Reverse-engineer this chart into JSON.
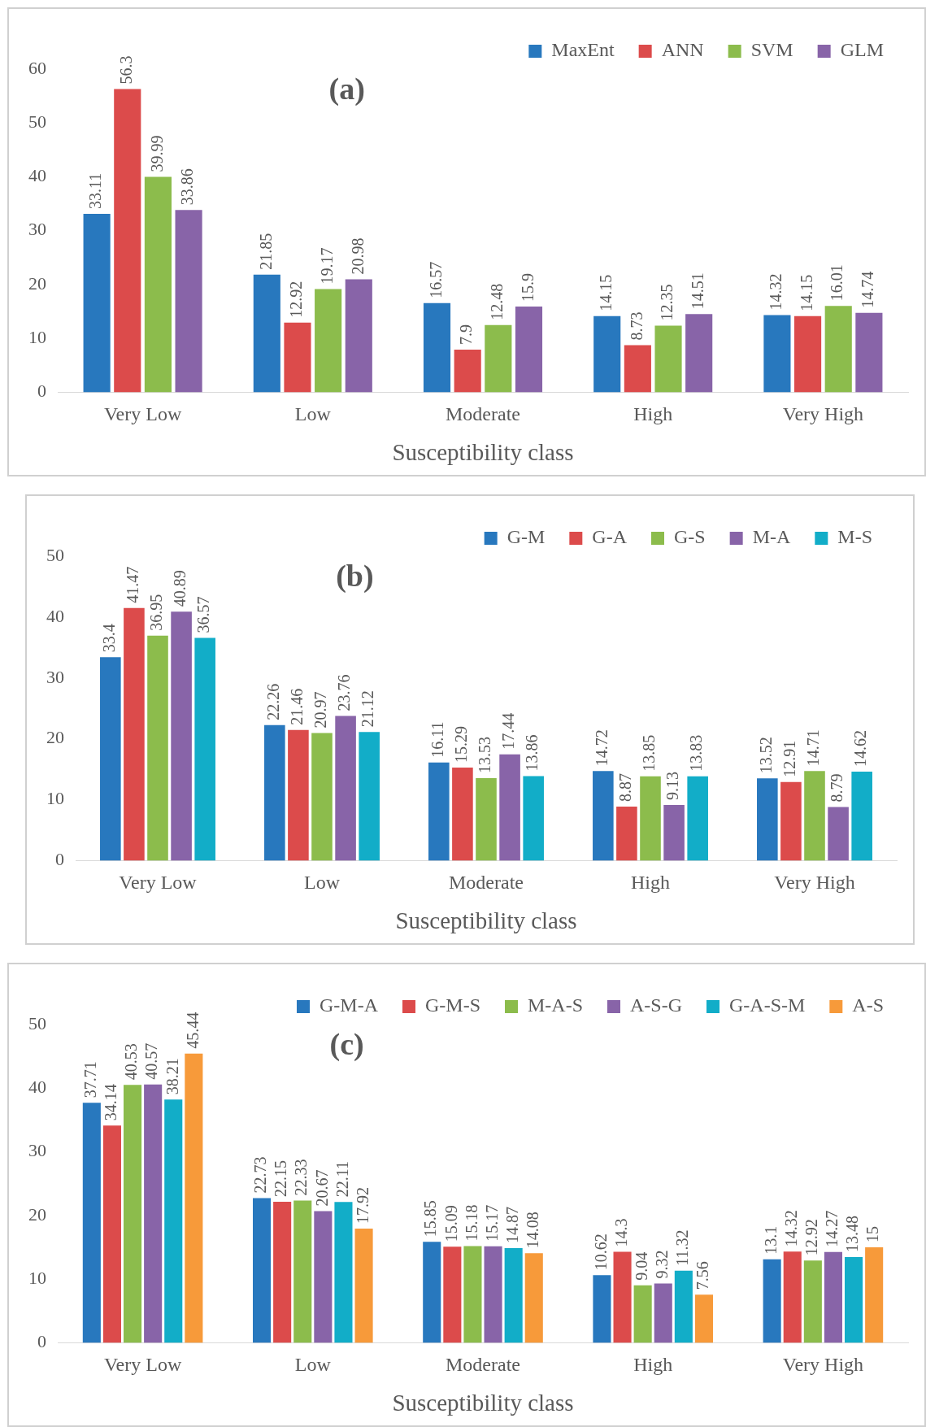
{
  "chart_data": [
    {
      "type": "bar",
      "title": "(a)",
      "xlabel": "Susceptibility class",
      "categories": [
        "Very Low",
        "Low",
        "Moderate",
        "High",
        "Very High"
      ],
      "ylim": [
        0,
        60
      ],
      "yticks": [
        0,
        10,
        20,
        30,
        40,
        50,
        60
      ],
      "grid": false,
      "legend": "top right",
      "data_labels": true,
      "series": [
        {
          "name": "MaxEnt",
          "color": "#2878be",
          "values": [
            33.11,
            21.85,
            16.57,
            14.15,
            14.32
          ]
        },
        {
          "name": "ANN",
          "color": "#dc4b4b",
          "values": [
            56.3,
            12.92,
            7.9,
            8.73,
            14.15
          ]
        },
        {
          "name": "SVM",
          "color": "#8cbc4c",
          "values": [
            39.99,
            19.17,
            12.48,
            12.35,
            16.01
          ]
        },
        {
          "name": "GLM",
          "color": "#8864a8",
          "values": [
            33.86,
            20.98,
            15.9,
            14.51,
            14.74
          ]
        }
      ]
    },
    {
      "type": "bar",
      "title": "(b)",
      "xlabel": "Susceptibility class",
      "categories": [
        "Very Low",
        "Low",
        "Moderate",
        "High",
        "Very High"
      ],
      "ylim": [
        0,
        50
      ],
      "yticks": [
        0,
        10,
        20,
        30,
        40,
        50
      ],
      "grid": false,
      "legend": "top right",
      "data_labels": true,
      "series": [
        {
          "name": "G-M",
          "color": "#2878be",
          "values": [
            33.4,
            22.26,
            16.11,
            14.72,
            13.52
          ]
        },
        {
          "name": "G-A",
          "color": "#dc4b4b",
          "values": [
            41.47,
            21.46,
            15.29,
            8.87,
            12.91
          ]
        },
        {
          "name": "G-S",
          "color": "#8cbc4c",
          "values": [
            36.95,
            20.97,
            13.53,
            13.85,
            14.71
          ]
        },
        {
          "name": "M-A",
          "color": "#8864a8",
          "values": [
            40.89,
            23.76,
            17.44,
            9.13,
            8.79
          ]
        },
        {
          "name": "M-S",
          "color": "#12adc8",
          "values": [
            36.57,
            21.12,
            13.86,
            13.83,
            14.62
          ]
        }
      ]
    },
    {
      "type": "bar",
      "title": "(c)",
      "xlabel": "Susceptibility class",
      "categories": [
        "Very Low",
        "Low",
        "Moderate",
        "High",
        "Very High"
      ],
      "ylim": [
        0,
        50
      ],
      "yticks": [
        0,
        10,
        20,
        30,
        40,
        50
      ],
      "grid": false,
      "legend": "top right",
      "data_labels": true,
      "series": [
        {
          "name": "G-M-A",
          "color": "#2878be",
          "values": [
            37.71,
            22.73,
            15.85,
            10.62,
            13.1
          ]
        },
        {
          "name": "G-M-S",
          "color": "#dc4b4b",
          "values": [
            34.14,
            22.15,
            15.09,
            14.3,
            14.32
          ]
        },
        {
          "name": "M-A-S",
          "color": "#8cbc4c",
          "values": [
            40.53,
            22.33,
            15.18,
            9.04,
            12.92
          ]
        },
        {
          "name": "A-S-G",
          "color": "#8864a8",
          "values": [
            40.57,
            20.67,
            15.17,
            9.32,
            14.27
          ]
        },
        {
          "name": "G-A-S-M",
          "color": "#12adc8",
          "values": [
            38.21,
            22.11,
            14.87,
            11.32,
            13.48
          ]
        },
        {
          "name": "A-S",
          "color": "#f79a3a",
          "values": [
            45.44,
            17.92,
            14.08,
            7.56,
            15
          ]
        }
      ]
    }
  ]
}
